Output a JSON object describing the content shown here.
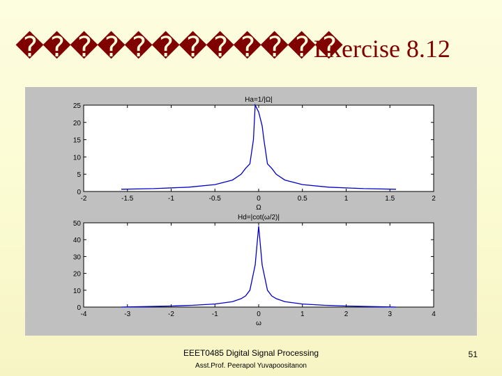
{
  "slide": {
    "title_boxes": "������������",
    "title": "Exercise 8.12"
  },
  "colors": {
    "title": "#800000",
    "figure_background": "#c0c0c0",
    "axes_background": "#ffffff",
    "line": "#0000c8"
  },
  "chart_data": [
    {
      "type": "line",
      "title": "Ha=1/|Ω|",
      "xlabel": "Ω",
      "ylabel": "",
      "xlim": [
        -2,
        2
      ],
      "ylim": [
        0,
        25
      ],
      "xticks": [
        "-2",
        "-1.5",
        "-1",
        "-0.5",
        "0",
        "0.5",
        "1",
        "1.5",
        "2"
      ],
      "yticks": [
        "0",
        "5",
        "10",
        "15",
        "20",
        "25"
      ],
      "series": [
        {
          "x": [
            -1.57,
            -1.2,
            -0.8,
            -0.5,
            -0.3,
            -0.2,
            -0.15,
            -0.1,
            -0.06,
            -0.04,
            0,
            0.04,
            0.06,
            0.1,
            0.15,
            0.2,
            0.3,
            0.5,
            0.8,
            1.2,
            1.57
          ],
          "y": [
            0.64,
            0.83,
            1.25,
            2,
            3.3,
            5,
            6.7,
            8,
            15,
            25,
            23,
            19,
            15,
            8,
            6.7,
            5,
            3.3,
            2,
            1.25,
            0.83,
            0.64
          ]
        }
      ]
    },
    {
      "type": "line",
      "title": "Hd=|cot(ω/2)|",
      "xlabel": "ω",
      "ylabel": "",
      "xlim": [
        -4,
        4
      ],
      "ylim": [
        0,
        50
      ],
      "xticks": [
        "-4",
        "-3",
        "-2",
        "-1",
        "0",
        "1",
        "2",
        "3",
        "4"
      ],
      "yticks": [
        "0",
        "10",
        "20",
        "30",
        "40",
        "50"
      ],
      "series": [
        {
          "x": [
            -3.14,
            -3.0,
            -2.5,
            -2.0,
            -1.5,
            -1.0,
            -0.6,
            -0.4,
            -0.3,
            -0.2,
            -0.08,
            0,
            0.08,
            0.2,
            0.3,
            0.4,
            0.6,
            1.0,
            1.5,
            2.0,
            2.5,
            3.0,
            3.14
          ],
          "y": [
            0,
            0.07,
            0.32,
            0.64,
            1.07,
            1.83,
            3.2,
            5,
            6.6,
            10,
            25,
            48,
            25,
            10,
            6.6,
            5,
            3.2,
            1.83,
            1.07,
            0.64,
            0.32,
            0.07,
            0
          ]
        }
      ]
    }
  ],
  "footer": {
    "course": "EEET0485 Digital Signal Processing",
    "author": "Asst.Prof. Peerapol Yuvapoositanon",
    "page": "51"
  }
}
